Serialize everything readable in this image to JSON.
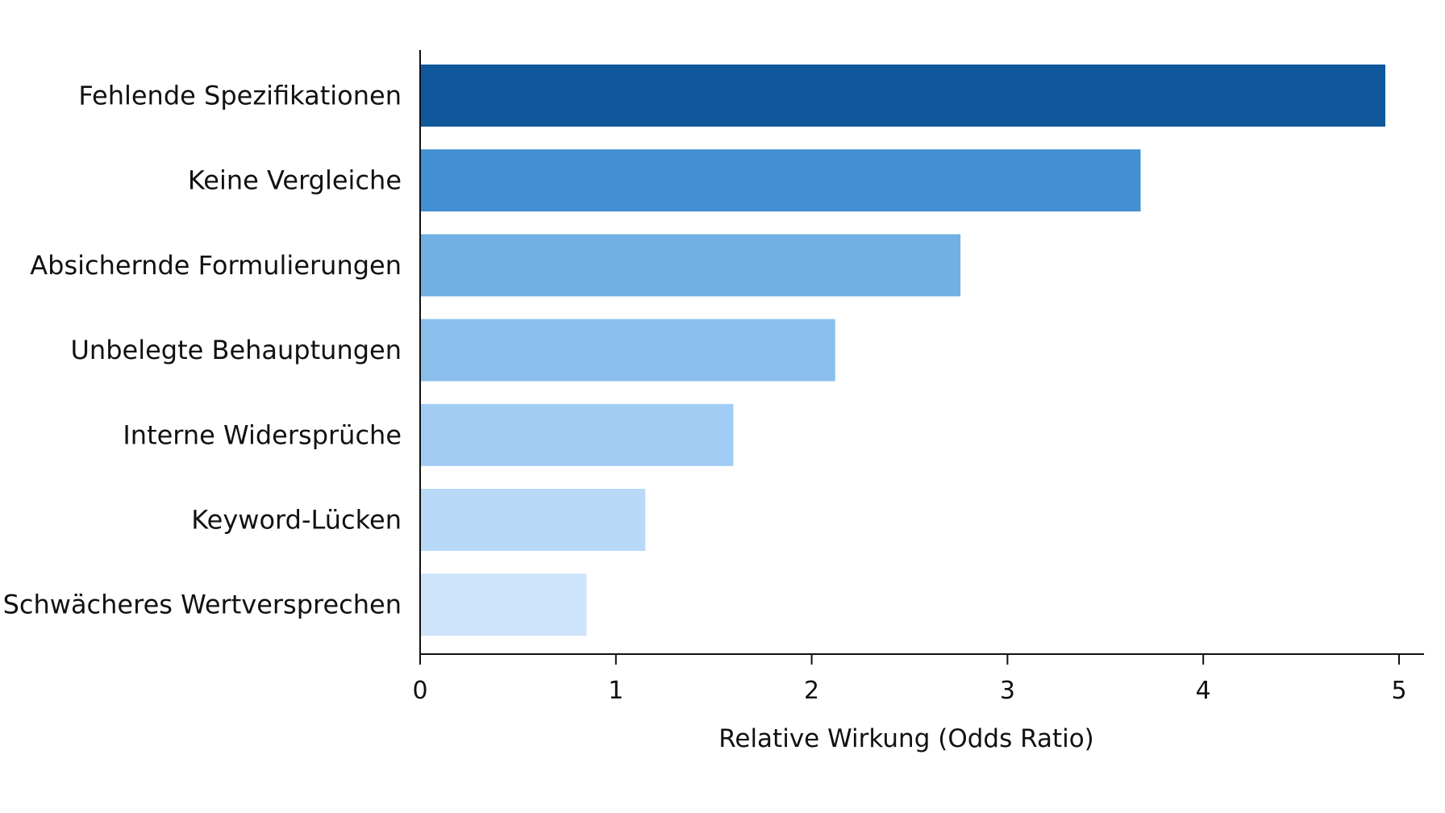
{
  "chart_data": {
    "type": "bar",
    "orientation": "horizontal",
    "title": "",
    "xlabel": "Relative Wirkung (Odds Ratio)",
    "ylabel": "",
    "xlim": [
      0,
      5
    ],
    "xticks": [
      "0",
      "1",
      "2",
      "3",
      "4",
      "5"
    ],
    "grid": false,
    "categories": [
      "Fehlende Spezifikationen",
      "Keine Vergleiche",
      "Absichernde Formulierungen",
      "Unbelegte Behauptungen",
      "Interne Widersprüche",
      "Keyword-Lücken",
      "Schwächeres Wertversprechen"
    ],
    "values": [
      4.93,
      3.68,
      2.76,
      2.12,
      1.6,
      1.15,
      0.85
    ],
    "colors": [
      "#10589b",
      "#428fd2",
      "#72afe3",
      "#8abfec",
      "#a1cdf5",
      "#b8d9f7",
      "#cde4fb"
    ]
  }
}
